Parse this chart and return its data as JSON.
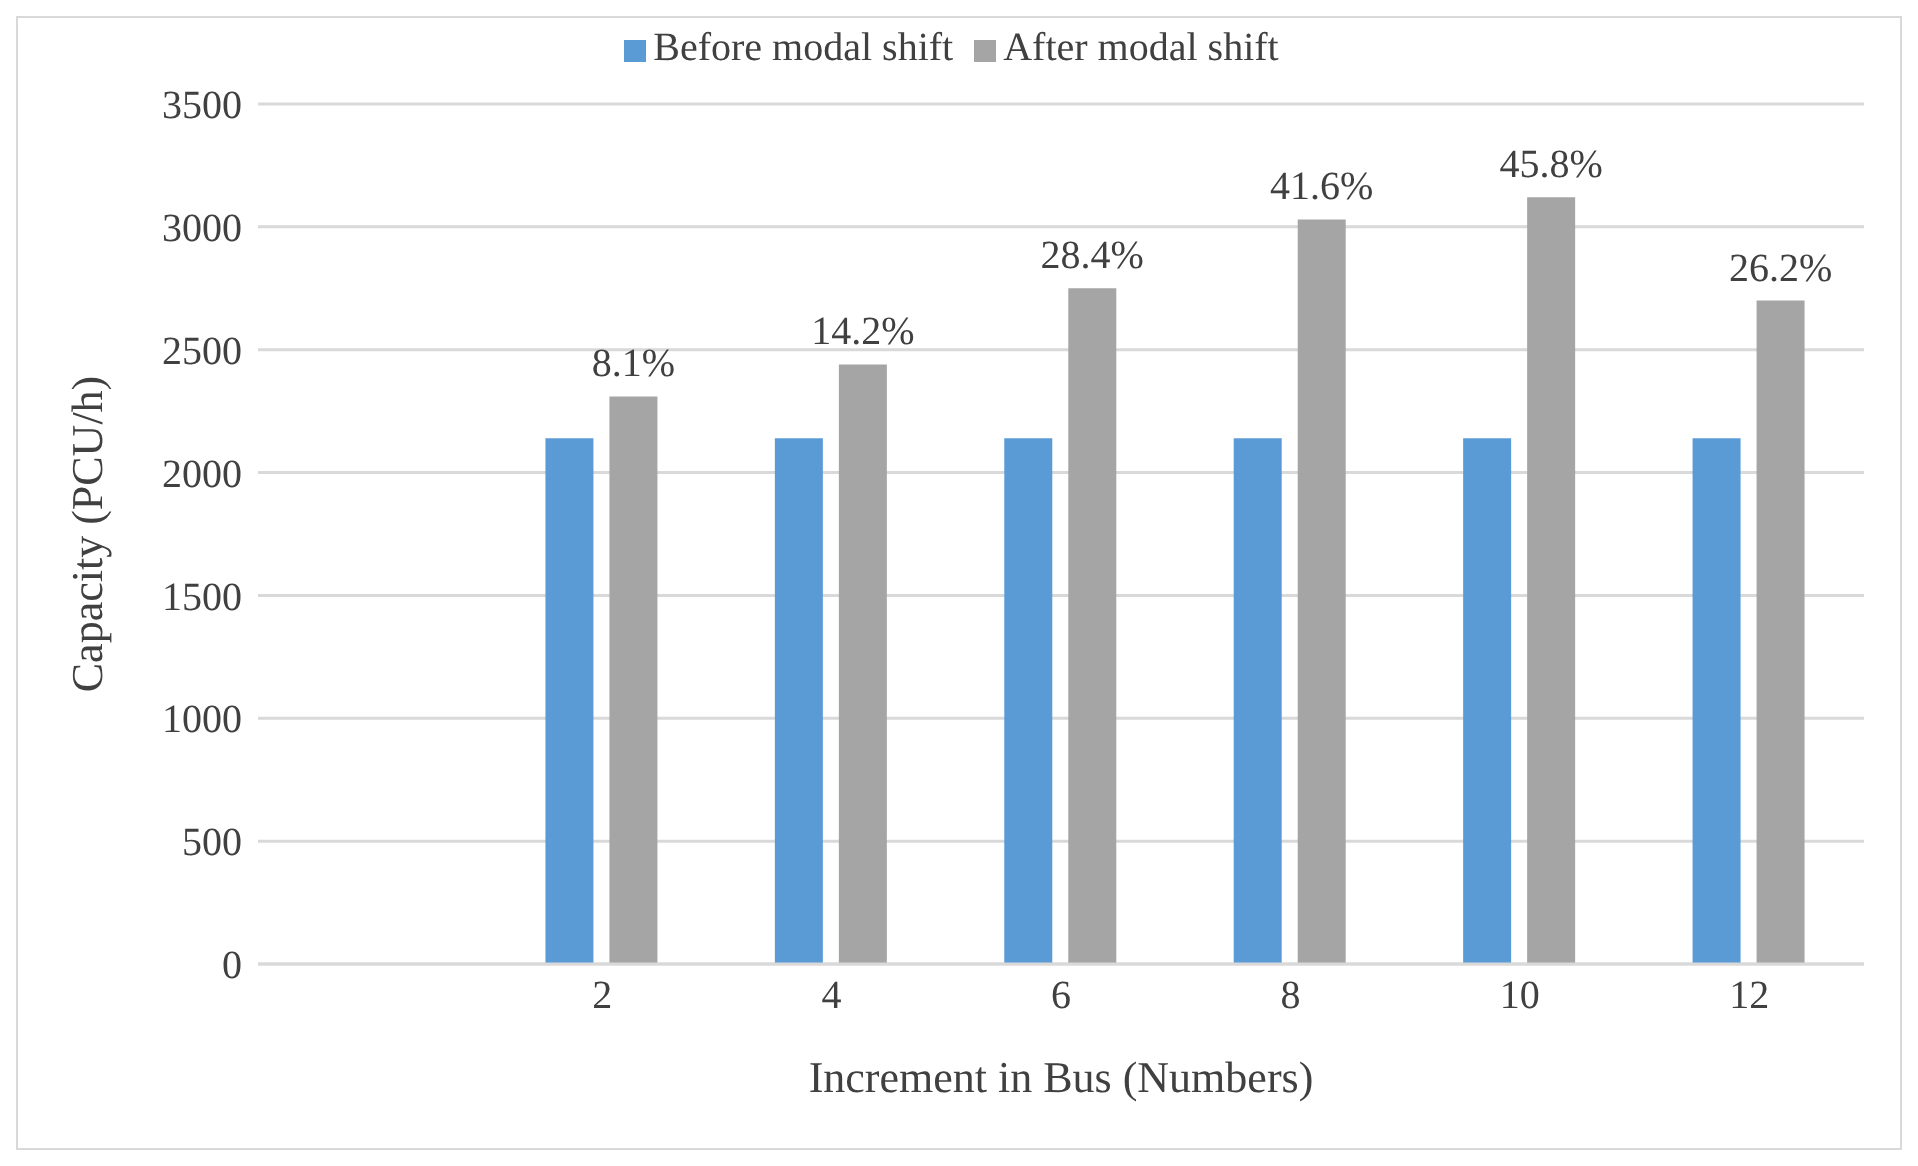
{
  "chart_data": {
    "type": "bar",
    "xlabel": "Increment in Bus (Numbers)",
    "ylabel": "Capacity (PCU/h)",
    "categories": [
      null,
      "2",
      "4",
      "6",
      "8",
      "10",
      "12"
    ],
    "series": [
      {
        "name": "Before modal shift",
        "color": "#5b9bd5",
        "values": [
          null,
          2140,
          2140,
          2140,
          2140,
          2140,
          2140
        ]
      },
      {
        "name": "After modal shift",
        "color": "#a5a5a5",
        "values": [
          null,
          2310,
          2440,
          2750,
          3030,
          3120,
          2700
        ]
      }
    ],
    "annotations": [
      {
        "text": "8.1%",
        "x": "2",
        "y": 2310
      },
      {
        "text": "14.2%",
        "x": "4",
        "y": 2440
      },
      {
        "text": "28.4%",
        "x": "6",
        "y": 2750
      },
      {
        "text": "41.6%",
        "x": "8",
        "y": 3030
      },
      {
        "text": "45.8%",
        "x": "10",
        "y": 3120
      },
      {
        "text": "26.2%",
        "x": "12",
        "y": 2700
      }
    ],
    "ylim": [
      0,
      3500
    ],
    "yticks": [
      0,
      500,
      1000,
      1500,
      2000,
      2500,
      3000,
      3500
    ],
    "grid": "y",
    "legend": "top"
  }
}
